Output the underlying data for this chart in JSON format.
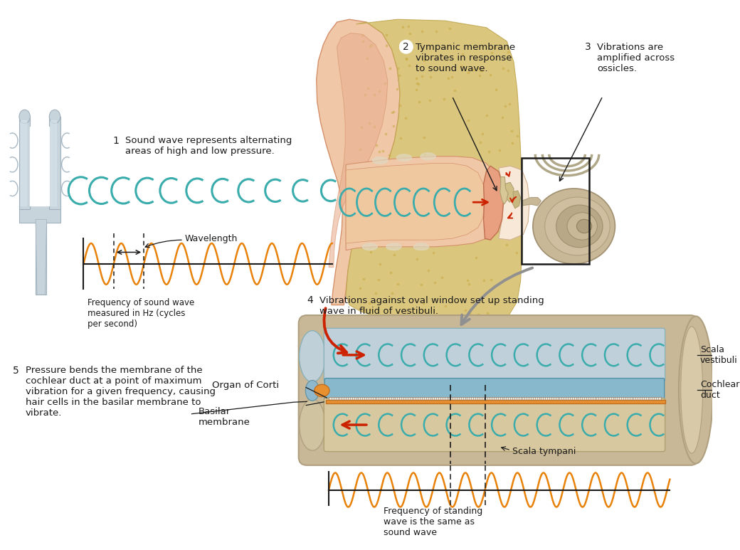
{
  "bg_color": "#ffffff",
  "text_color": "#1a1a1a",
  "teal_color": "#3aacac",
  "orange_color": "#e8820a",
  "red_color": "#cc2200",
  "gray_color": "#aaaaaa",
  "skin_light": "#f0c8a8",
  "skin_mid": "#e8b090",
  "skin_dark": "#d4906a",
  "bone_yellow": "#e8c860",
  "bone_light": "#f0d880",
  "cochlea_tan": "#c8b898",
  "cochlea_dark": "#b0a080",
  "sv_blue": "#b0ccd8",
  "cd_blue": "#90b8cc",
  "st_tan": "#d8c8a0",
  "tine_color": "#c8d4dc",
  "tine_edge": "#a0b0bc",
  "step1_text": "Sound wave represents alternating\nareas of high and low pressure.",
  "step2_text": "Tympanic membrane\nvibrates in response\nto sound wave.",
  "step3_text": "Vibrations are\namplified across\nossicles.",
  "step4_text": "Vibrations against oval window set up standing\nwave in fluid of vestibuli.",
  "step5_text": "Pressure bends the membrane of the\ncochlear duct at a point of maximum\nvibration for a given frequency, causing\nhair cells in the basilar membrane to\nvibrate.",
  "wavelength_label": "Wavelength",
  "freq_label": "Frequency of sound wave\nmeasured in Hz (cycles\nper second)",
  "freq_standing_label": "Frequency of standing\nwave is the same as\nsound wave",
  "organ_corti_label": "Organ of Corti",
  "basilar_label": "Basilar\nmembrane",
  "scala_vestibuli_label": "Scala\nvestibuli",
  "cochlear_duct_label": "Cochlear\nduct",
  "scala_tympani_label": "Scala tympani"
}
